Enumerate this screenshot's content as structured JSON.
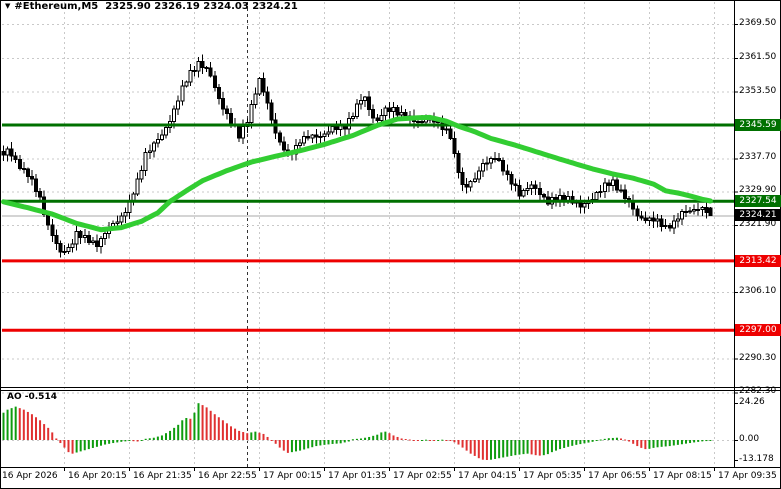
{
  "window": {
    "symbol": "#Ethereum,M5",
    "ohlc": "2325.90 2326.19 2324.03 2324.21"
  },
  "indicator": {
    "name": "AO",
    "value": "-0.514",
    "axis_ticks": [
      {
        "label": "24.26",
        "value": 24.26
      },
      {
        "label": "0.00",
        "value": 0.0
      },
      {
        "label": "-13.178",
        "value": -13.178
      }
    ]
  },
  "price_axis": {
    "ticks": [
      {
        "label": "2369.50",
        "price": 2369.5
      },
      {
        "label": "2361.50",
        "price": 2361.5
      },
      {
        "label": "2353.50",
        "price": 2353.5
      },
      {
        "label": "2337.70",
        "price": 2337.7
      },
      {
        "label": "2329.90",
        "price": 2329.9
      },
      {
        "label": "2321.90",
        "price": 2321.9
      },
      {
        "label": "2306.10",
        "price": 2306.1
      },
      {
        "label": "2290.30",
        "price": 2290.3
      },
      {
        "label": "2282.30",
        "price": 2282.3
      }
    ],
    "badges": [
      {
        "label": "2345.59",
        "price": 2345.59,
        "kind": "resistance",
        "color": "#007000"
      },
      {
        "label": "2327.54",
        "price": 2327.54,
        "kind": "resistance",
        "color": "#007000"
      },
      {
        "label": "2324.21",
        "price": 2324.21,
        "kind": "current-price",
        "color": "#000000"
      },
      {
        "label": "2313.42",
        "price": 2313.42,
        "kind": "support",
        "color": "#ee0000"
      },
      {
        "label": "2297.00",
        "price": 2297.0,
        "kind": "support",
        "color": "#ee0000"
      }
    ]
  },
  "time_axis": {
    "labels": [
      "16 Apr 2026",
      "16 Apr 20:15",
      "16 Apr 21:35",
      "16 Apr 22:55",
      "17 Apr 00:15",
      "17 Apr 01:35",
      "17 Apr 02:55",
      "17 Apr 04:15",
      "17 Apr 05:35",
      "17 Apr 06:55",
      "17 Apr 08:15",
      "17 Apr 09:35"
    ]
  },
  "colors": {
    "ma": "#32cd32",
    "level_green": "#007000",
    "level_red": "#ee0000",
    "current_badge": "#000000",
    "current_line": "#aaaaaa",
    "grid": "#c9c9c9",
    "day_separator": "#333333",
    "ao_up": "#0e9c0e",
    "ao_down": "#e03131",
    "candle_up": "#ffffff",
    "candle_down": "#000000",
    "candle_border": "#000000"
  },
  "chart_data": {
    "type": "bar",
    "subtype": "candlestick-with-oscillator",
    "symbol": "#Ethereum",
    "timeframe": "M5",
    "title": "#Ethereum,M5 2325.90 2326.19 2324.03 2324.21",
    "current_ohlc": {
      "open": 2325.9,
      "high": 2326.19,
      "low": 2324.03,
      "close": 2324.21
    },
    "price_levels": [
      2345.59,
      2327.54,
      2313.42,
      2297.0
    ],
    "current_price": 2324.21,
    "price_range_shown": [
      2282.3,
      2369.5
    ],
    "candle_count": 175,
    "close_waypoints": [
      [
        0,
        2338.5
      ],
      [
        1,
        2339.5
      ],
      [
        3,
        2337
      ],
      [
        6,
        2334
      ],
      [
        9,
        2328
      ],
      [
        11,
        2322
      ],
      [
        14,
        2315
      ],
      [
        16,
        2316.5
      ],
      [
        18,
        2320
      ],
      [
        20,
        2318.5
      ],
      [
        23,
        2317.5
      ],
      [
        26,
        2321
      ],
      [
        29,
        2324
      ],
      [
        31,
        2327
      ],
      [
        33,
        2332
      ],
      [
        35,
        2339
      ],
      [
        37,
        2341
      ],
      [
        39,
        2343
      ],
      [
        41,
        2347
      ],
      [
        44,
        2354
      ],
      [
        46,
        2358
      ],
      [
        48,
        2360.5
      ],
      [
        50,
        2358.5
      ],
      [
        51,
        2357
      ],
      [
        53,
        2352
      ],
      [
        54,
        2350
      ],
      [
        56,
        2346
      ],
      [
        58,
        2343
      ],
      [
        60,
        2347
      ],
      [
        62,
        2353
      ],
      [
        63,
        2356
      ],
      [
        65,
        2351
      ],
      [
        66,
        2347
      ],
      [
        68,
        2341
      ],
      [
        70,
        2338.5
      ],
      [
        72,
        2340.5
      ],
      [
        73,
        2342
      ],
      [
        75,
        2342.5
      ],
      [
        77,
        2343
      ],
      [
        79,
        2343.5
      ],
      [
        81,
        2344.5
      ],
      [
        83,
        2345
      ],
      [
        84,
        2345.5
      ],
      [
        86,
        2348
      ],
      [
        88,
        2351.5
      ],
      [
        89,
        2352
      ],
      [
        91,
        2347.5
      ],
      [
        92,
        2346.5
      ],
      [
        94,
        2349
      ],
      [
        96,
        2349.5
      ],
      [
        98,
        2348
      ],
      [
        100,
        2347
      ],
      [
        102,
        2346.5
      ],
      [
        104,
        2347
      ],
      [
        105,
        2346.5
      ],
      [
        107,
        2346
      ],
      [
        109,
        2344.5
      ],
      [
        110,
        2343
      ],
      [
        111,
        2338
      ],
      [
        113,
        2331
      ],
      [
        114,
        2331.5
      ],
      [
        116,
        2333
      ],
      [
        118,
        2336
      ],
      [
        120,
        2337.5
      ],
      [
        121,
        2338.5
      ],
      [
        123,
        2335
      ],
      [
        124,
        2333
      ],
      [
        126,
        2331
      ],
      [
        127,
        2329.5
      ],
      [
        129,
        2330.5
      ],
      [
        130,
        2331
      ],
      [
        132,
        2329.5
      ],
      [
        134,
        2327.5
      ],
      [
        136,
        2328
      ],
      [
        139,
        2328.5
      ],
      [
        141,
        2327
      ],
      [
        142,
        2326
      ],
      [
        144,
        2327.5
      ],
      [
        146,
        2329.5
      ],
      [
        148,
        2331
      ],
      [
        150,
        2332
      ],
      [
        152,
        2330
      ],
      [
        153,
        2328.5
      ],
      [
        155,
        2325.5
      ],
      [
        156,
        2324
      ],
      [
        158,
        2323.5
      ],
      [
        160,
        2323
      ],
      [
        162,
        2322
      ],
      [
        163,
        2321.5
      ],
      [
        165,
        2322.5
      ],
      [
        167,
        2324.5
      ],
      [
        169,
        2325.5
      ],
      [
        171,
        2326
      ],
      [
        172,
        2325.5
      ],
      [
        173,
        2325
      ],
      [
        174,
        2324.21
      ]
    ],
    "ma_waypoints": [
      [
        0,
        2327.4
      ],
      [
        6,
        2326
      ],
      [
        12,
        2324.5
      ],
      [
        18,
        2322.3
      ],
      [
        24,
        2320.8
      ],
      [
        29,
        2321.3
      ],
      [
        34,
        2322.8
      ],
      [
        38,
        2324.8
      ],
      [
        41,
        2327.5
      ],
      [
        45,
        2330
      ],
      [
        49,
        2332.4
      ],
      [
        55,
        2334.8
      ],
      [
        61,
        2336.8
      ],
      [
        67,
        2338.2
      ],
      [
        73,
        2339.5
      ],
      [
        79,
        2341
      ],
      [
        86,
        2343.1
      ],
      [
        92,
        2345.5
      ],
      [
        97,
        2347
      ],
      [
        102,
        2347.3
      ],
      [
        105,
        2347.4
      ],
      [
        109,
        2346.5
      ],
      [
        112,
        2345.3
      ],
      [
        116,
        2344
      ],
      [
        120,
        2342.4
      ],
      [
        126,
        2340.8
      ],
      [
        132,
        2339
      ],
      [
        138,
        2337.2
      ],
      [
        145,
        2335.2
      ],
      [
        150,
        2334
      ],
      [
        155,
        2333
      ],
      [
        160,
        2331.6
      ],
      [
        163,
        2330
      ],
      [
        166,
        2329.5
      ],
      [
        169,
        2328.8
      ],
      [
        172,
        2328
      ],
      [
        174,
        2327.6
      ]
    ],
    "ao": {
      "current": -0.514,
      "max": 24.26,
      "min": -13.178,
      "waypoints": [
        [
          0,
          18
        ],
        [
          1,
          20
        ],
        [
          3,
          22
        ],
        [
          5,
          20
        ],
        [
          7,
          17
        ],
        [
          9,
          13
        ],
        [
          11,
          8
        ],
        [
          12,
          5
        ],
        [
          13,
          1
        ],
        [
          14,
          -2
        ],
        [
          15,
          -5
        ],
        [
          16,
          -8
        ],
        [
          17,
          -9
        ],
        [
          19,
          -7.5
        ],
        [
          21,
          -6
        ],
        [
          23,
          -4.5
        ],
        [
          25,
          -3
        ],
        [
          27,
          -2
        ],
        [
          29,
          -1.2
        ],
        [
          31,
          -0.6
        ],
        [
          33,
          -1
        ],
        [
          35,
          0.8
        ],
        [
          37,
          1.5
        ],
        [
          39,
          3
        ],
        [
          41,
          6
        ],
        [
          43,
          10
        ],
        [
          44,
          13
        ],
        [
          45,
          14.5
        ],
        [
          46,
          14
        ],
        [
          47,
          18
        ],
        [
          48,
          24.26
        ],
        [
          49,
          23
        ],
        [
          50,
          21.5
        ],
        [
          52,
          17
        ],
        [
          54,
          13
        ],
        [
          56,
          9
        ],
        [
          58,
          6
        ],
        [
          60,
          4.5
        ],
        [
          61,
          5
        ],
        [
          62,
          5.5
        ],
        [
          63,
          4.8
        ],
        [
          64,
          4
        ],
        [
          65,
          2
        ],
        [
          66,
          -0.5
        ],
        [
          67,
          -2.5
        ],
        [
          68,
          -5
        ],
        [
          69,
          -7
        ],
        [
          70,
          -8.5
        ],
        [
          71,
          -8
        ],
        [
          73,
          -7
        ],
        [
          75,
          -5.5
        ],
        [
          77,
          -4
        ],
        [
          79,
          -3.2
        ],
        [
          81,
          -2.6
        ],
        [
          83,
          -2.2
        ],
        [
          85,
          -1
        ],
        [
          86,
          0.5
        ],
        [
          88,
          1
        ],
        [
          90,
          2
        ],
        [
          92,
          3.5
        ],
        [
          93,
          5
        ],
        [
          94,
          5.5
        ],
        [
          95,
          4.5
        ],
        [
          96,
          3
        ],
        [
          97,
          2
        ],
        [
          98,
          1
        ],
        [
          100,
          0.3
        ],
        [
          102,
          -0.3
        ],
        [
          104,
          0.2
        ],
        [
          106,
          -0.3
        ],
        [
          108,
          0.2
        ],
        [
          110,
          -0.5
        ],
        [
          111,
          -1.5
        ],
        [
          112,
          -3
        ],
        [
          113,
          -5
        ],
        [
          114,
          -7
        ],
        [
          115,
          -9
        ],
        [
          116,
          -10.5
        ],
        [
          117,
          -12
        ],
        [
          118,
          -13
        ],
        [
          119,
          -13.178
        ],
        [
          120,
          -13
        ],
        [
          122,
          -12
        ],
        [
          124,
          -11
        ],
        [
          126,
          -10
        ],
        [
          128,
          -9.3
        ],
        [
          129,
          -9
        ],
        [
          130,
          -9.5
        ],
        [
          131,
          -10
        ],
        [
          132,
          -10.3
        ],
        [
          133,
          -10
        ],
        [
          134,
          -9.3
        ],
        [
          135,
          -8
        ],
        [
          137,
          -6
        ],
        [
          139,
          -4.5
        ],
        [
          141,
          -3.2
        ],
        [
          143,
          -2.2
        ],
        [
          145,
          -1.2
        ],
        [
          147,
          0.3
        ],
        [
          149,
          1.2
        ],
        [
          151,
          1.5
        ],
        [
          152,
          1
        ],
        [
          153,
          0.3
        ],
        [
          154,
          -1
        ],
        [
          155,
          -2.5
        ],
        [
          156,
          -4
        ],
        [
          157,
          -5.2
        ],
        [
          158,
          -6
        ],
        [
          159,
          -5.8
        ],
        [
          160,
          -5.2
        ],
        [
          161,
          -4.8
        ],
        [
          162,
          -4.5
        ],
        [
          164,
          -4
        ],
        [
          166,
          -3.2
        ],
        [
          168,
          -2.4
        ],
        [
          170,
          -1.6
        ],
        [
          172,
          -0.9
        ],
        [
          174,
          -0.514
        ]
      ]
    }
  }
}
